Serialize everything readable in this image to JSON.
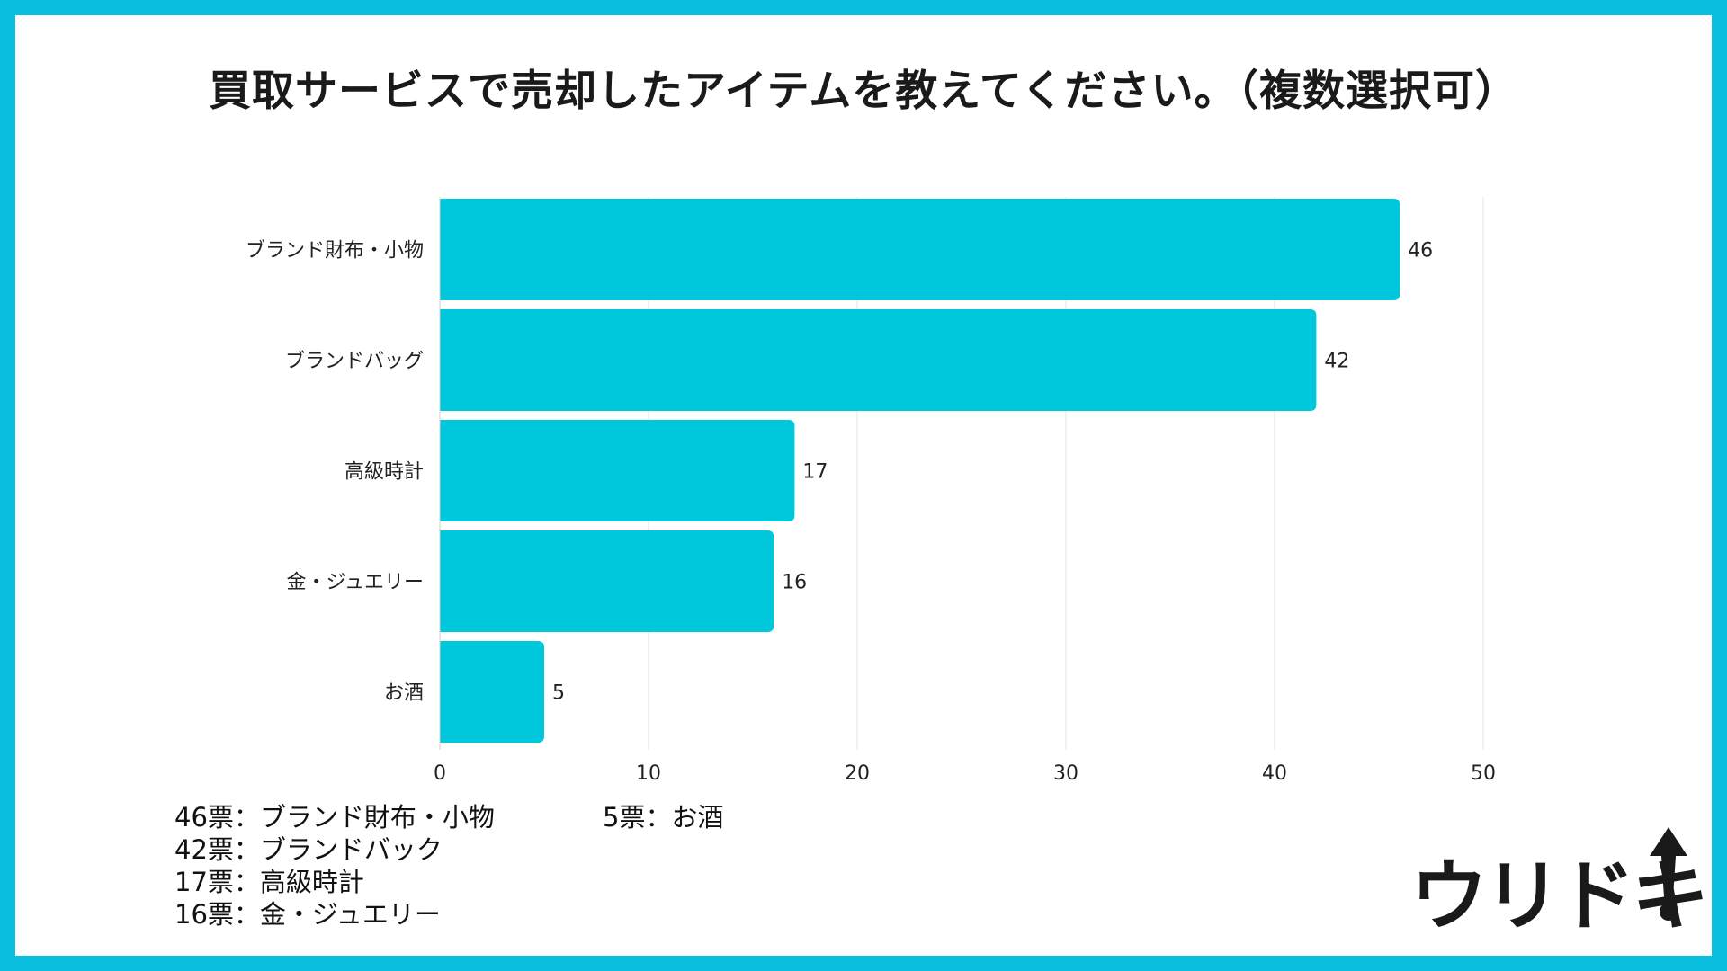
{
  "title": "買取サービスで売却したアイテムを教えてください。（複数選択可）",
  "chart_data": {
    "type": "bar",
    "orientation": "horizontal",
    "title": "買取サービスで売却したアイテムを教えてください。（複数選択可）",
    "categories": [
      "ブランド財布・小物",
      "ブランドバッグ",
      "高級時計",
      "金・ジュエリー",
      "お酒"
    ],
    "values": [
      46,
      42,
      17,
      16,
      5
    ],
    "xlim": [
      0,
      50
    ],
    "xticks": [
      0,
      10,
      20,
      30,
      40,
      50
    ],
    "grid": "vertical",
    "bar_color": "#00c8dc",
    "data_labels": true
  },
  "legend_notes": {
    "col1": [
      "46票：ブランド財布・小物",
      "42票：ブランドバック",
      "17票：高級時計",
      "16票：金・ジュエリー"
    ],
    "col2": [
      "5票：お酒"
    ]
  },
  "logo": {
    "text": "ウリドキ",
    "icon": "arrow-up-exclamation-icon"
  },
  "colors": {
    "border": "#0ac0de",
    "bar": "#00c8dc",
    "grid": "#e3e3e3"
  }
}
